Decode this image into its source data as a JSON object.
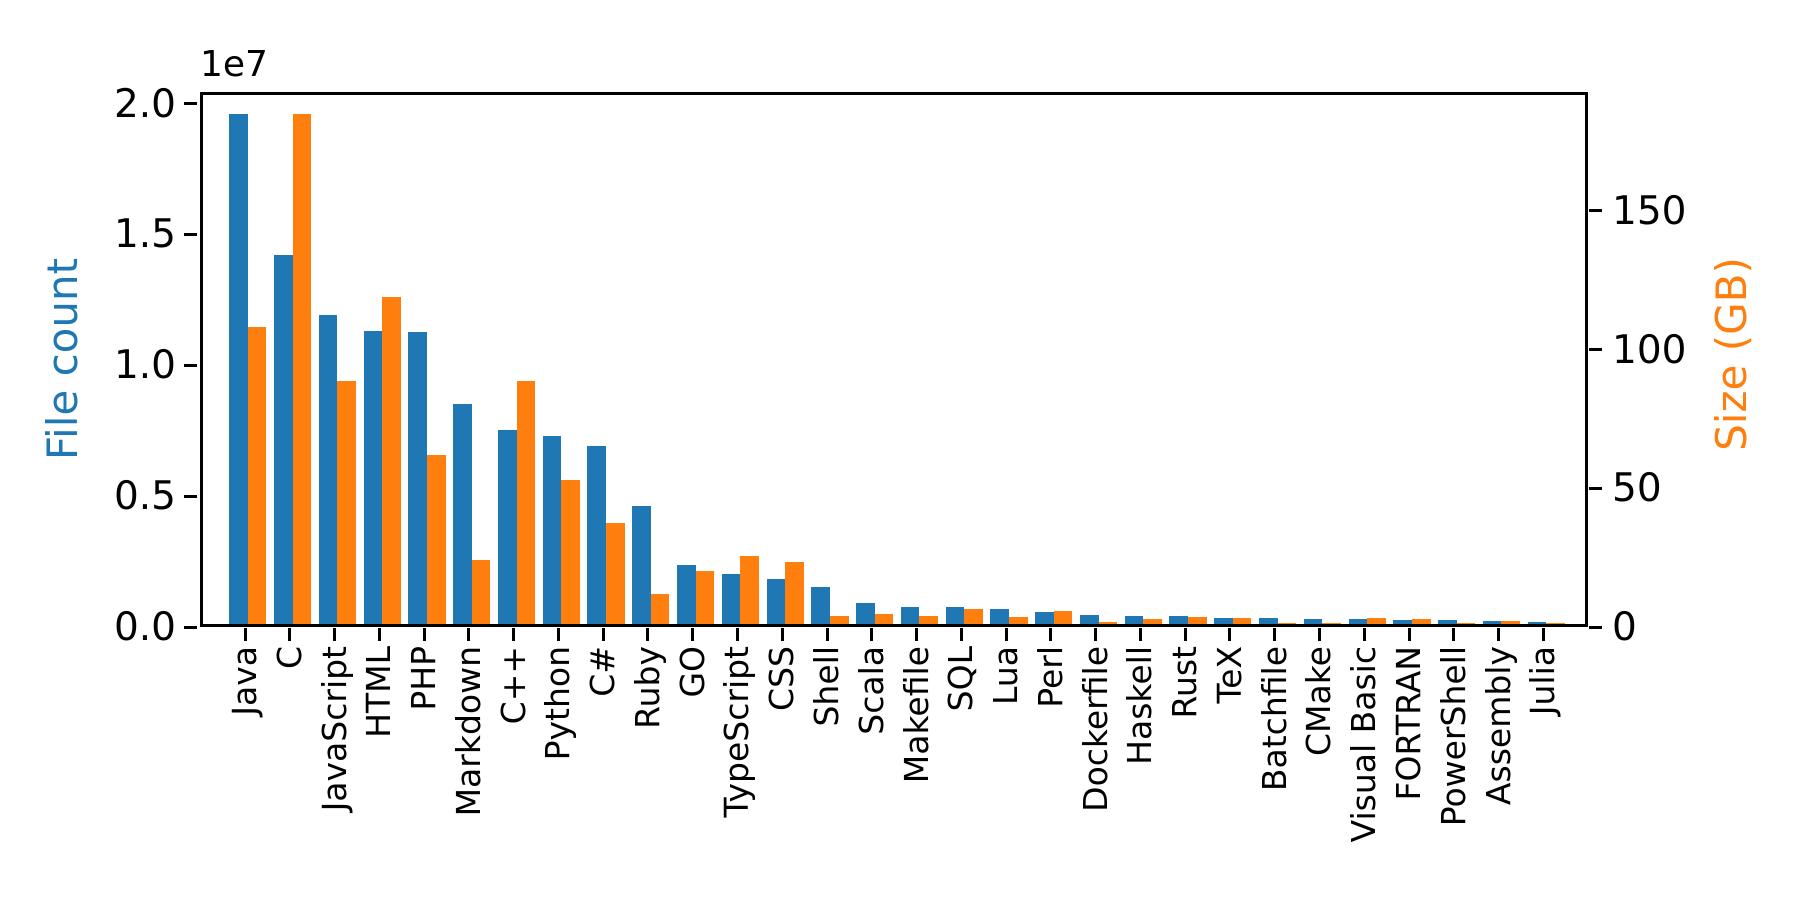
{
  "chart_data": {
    "type": "bar",
    "title": "",
    "grid": false,
    "legend": false,
    "categories": [
      "Java",
      "C",
      "JavaScript",
      "HTML",
      "PHP",
      "Markdown",
      "C++",
      "Python",
      "C#",
      "Ruby",
      "GO",
      "TypeScript",
      "CSS",
      "Shell",
      "Scala",
      "Makefile",
      "SQL",
      "Lua",
      "Perl",
      "Dockerfile",
      "Haskell",
      "Rust",
      "TeX",
      "Batchfile",
      "CMake",
      "Visual Basic",
      "FORTRAN",
      "PowerShell",
      "Assembly",
      "Julia"
    ],
    "series": [
      {
        "name": "File count",
        "axis": "left",
        "color": "#1f77b4",
        "values": [
          19500000,
          14100000,
          11800000,
          11200000,
          11150000,
          8400000,
          7400000,
          7200000,
          6800000,
          4500000,
          2270000,
          1900000,
          1720000,
          1400000,
          800000,
          640000,
          660000,
          570000,
          470000,
          340000,
          290000,
          320000,
          230000,
          250000,
          190000,
          200000,
          150000,
          170000,
          100000,
          60000
        ]
      },
      {
        "name": "Size (GB)",
        "axis": "right",
        "color": "#ff7f0e",
        "values": [
          107,
          184,
          87.5,
          118,
          61,
          23,
          87.5,
          52,
          36.5,
          11,
          19,
          24.5,
          22.5,
          3,
          3.8,
          2.8,
          5.4,
          2.4,
          4.6,
          0.6,
          1.9,
          2.4,
          2.2,
          0.5,
          0.3,
          2.2,
          2.0,
          0.4,
          1.0,
          0.25
        ]
      }
    ],
    "left_axis": {
      "label": "File count",
      "label_color": "#1f77b4",
      "offset_text": "1e7",
      "tick_labels": [
        "0.0",
        "0.5",
        "1.0",
        "1.5",
        "2.0"
      ],
      "tick_values": [
        0,
        5000000,
        10000000,
        15000000,
        20000000
      ],
      "range": [
        0,
        20443000
      ]
    },
    "right_axis": {
      "label": "Size (GB)",
      "label_color": "#ff7f0e",
      "tick_labels": [
        "0",
        "50",
        "100",
        "150"
      ],
      "tick_values": [
        0,
        50,
        100,
        150
      ],
      "range": [
        0,
        192.86
      ]
    }
  }
}
